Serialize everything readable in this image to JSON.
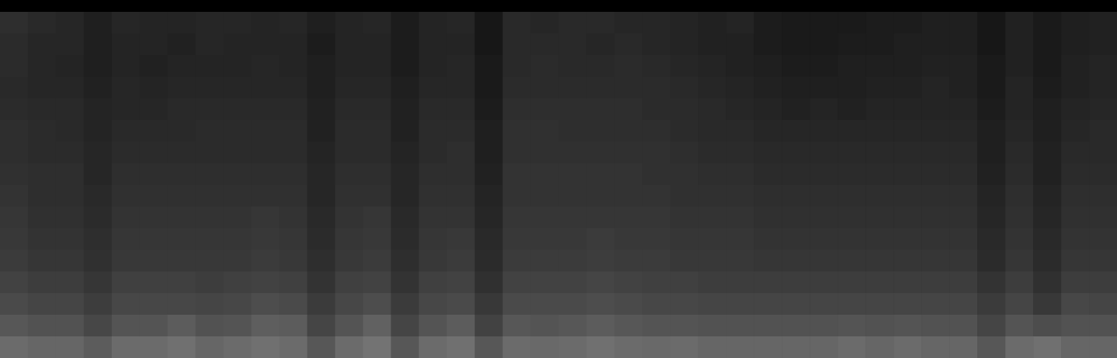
{
  "chart_data": {
    "type": "heatmap",
    "tick_labels": false,
    "color": "#ffffff",
    "zlim": [
      0,
      100
    ],
    "cells": [
      [
        18,
        16,
        15,
        12,
        15,
        14,
        14,
        15,
        15,
        14,
        15,
        12,
        14,
        15,
        11,
        14,
        15,
        9,
        16,
        15,
        16,
        16,
        15,
        15,
        14,
        13,
        14,
        11,
        10,
        10,
        10,
        11,
        11,
        12,
        12,
        9,
        13,
        10,
        12,
        13
      ],
      [
        17,
        15,
        15,
        12,
        14,
        14,
        13,
        15,
        14,
        14,
        14,
        11,
        14,
        14,
        11,
        14,
        14,
        9,
        16,
        16,
        16,
        15,
        16,
        15,
        14,
        13,
        13,
        11,
        10,
        10,
        11,
        11,
        12,
        12,
        12,
        9,
        13,
        10,
        12,
        13
      ],
      [
        17,
        15,
        14,
        12,
        14,
        13,
        14,
        14,
        14,
        15,
        14,
        12,
        14,
        14,
        11,
        14,
        15,
        10,
        16,
        17,
        16,
        16,
        17,
        16,
        15,
        14,
        13,
        12,
        11,
        11,
        12,
        12,
        12,
        13,
        13,
        10,
        13,
        10,
        13,
        14
      ],
      [
        16,
        15,
        15,
        13,
        15,
        14,
        15,
        15,
        15,
        15,
        15,
        12,
        15,
        15,
        12,
        15,
        15,
        10,
        17,
        17,
        17,
        17,
        17,
        17,
        16,
        15,
        14,
        13,
        12,
        12,
        12,
        13,
        13,
        14,
        13,
        10,
        14,
        11,
        13,
        14
      ],
      [
        17,
        16,
        16,
        14,
        15,
        15,
        16,
        16,
        16,
        16,
        16,
        13,
        16,
        16,
        13,
        16,
        16,
        11,
        18,
        18,
        18,
        18,
        18,
        17,
        17,
        16,
        15,
        14,
        13,
        14,
        13,
        14,
        14,
        14,
        14,
        11,
        14,
        12,
        14,
        15
      ],
      [
        18,
        17,
        16,
        14,
        16,
        16,
        16,
        17,
        17,
        17,
        17,
        13,
        17,
        17,
        13,
        17,
        17,
        12,
        19,
        19,
        18,
        18,
        18,
        18,
        17,
        16,
        16,
        15,
        15,
        15,
        15,
        15,
        15,
        15,
        15,
        12,
        15,
        12,
        15,
        16
      ],
      [
        18,
        17,
        17,
        15,
        17,
        17,
        17,
        17,
        17,
        17,
        17,
        14,
        17,
        17,
        14,
        17,
        18,
        12,
        19,
        19,
        19,
        19,
        19,
        19,
        18,
        17,
        17,
        16,
        16,
        16,
        16,
        16,
        16,
        16,
        16,
        12,
        16,
        13,
        16,
        16
      ],
      [
        19,
        18,
        18,
        15,
        18,
        18,
        18,
        18,
        18,
        18,
        18,
        15,
        18,
        18,
        15,
        18,
        18,
        13,
        20,
        20,
        20,
        20,
        20,
        19,
        19,
        18,
        18,
        17,
        17,
        17,
        17,
        17,
        17,
        17,
        17,
        13,
        17,
        13,
        17,
        17
      ],
      [
        20,
        18,
        18,
        16,
        19,
        19,
        19,
        19,
        19,
        19,
        19,
        15,
        19,
        19,
        15,
        19,
        19,
        14,
        20,
        20,
        20,
        20,
        20,
        20,
        19,
        19,
        19,
        18,
        18,
        18,
        18,
        18,
        18,
        18,
        18,
        14,
        18,
        14,
        18,
        18
      ],
      [
        21,
        19,
        19,
        17,
        20,
        20,
        20,
        20,
        20,
        21,
        20,
        16,
        20,
        21,
        16,
        20,
        20,
        15,
        21,
        21,
        21,
        21,
        21,
        21,
        20,
        20,
        20,
        19,
        19,
        19,
        19,
        19,
        19,
        19,
        19,
        15,
        19,
        15,
        19,
        19
      ],
      [
        22,
        20,
        20,
        18,
        21,
        21,
        21,
        21,
        21,
        22,
        21,
        17,
        21,
        22,
        17,
        21,
        22,
        16,
        22,
        22,
        22,
        23,
        22,
        22,
        21,
        21,
        21,
        20,
        20,
        20,
        20,
        20,
        20,
        20,
        20,
        16,
        20,
        16,
        20,
        20
      ],
      [
        23,
        21,
        21,
        19,
        22,
        22,
        22,
        22,
        22,
        23,
        22,
        18,
        22,
        23,
        18,
        22,
        23,
        17,
        23,
        23,
        23,
        24,
        23,
        23,
        22,
        22,
        22,
        21,
        21,
        21,
        21,
        21,
        21,
        21,
        21,
        17,
        21,
        17,
        21,
        21
      ],
      [
        26,
        24,
        24,
        21,
        25,
        25,
        25,
        24,
        25,
        26,
        25,
        20,
        25,
        26,
        20,
        25,
        26,
        19,
        26,
        26,
        26,
        27,
        26,
        25,
        25,
        24,
        24,
        24,
        24,
        24,
        24,
        24,
        24,
        24,
        24,
        20,
        24,
        19,
        24,
        24
      ],
      [
        29,
        27,
        27,
        24,
        28,
        28,
        28,
        27,
        28,
        30,
        29,
        23,
        28,
        30,
        23,
        28,
        29,
        22,
        29,
        29,
        29,
        30,
        29,
        28,
        28,
        27,
        27,
        27,
        27,
        27,
        27,
        27,
        27,
        27,
        27,
        23,
        27,
        22,
        28,
        27
      ],
      [
        34,
        32,
        32,
        28,
        33,
        33,
        36,
        32,
        33,
        37,
        36,
        27,
        33,
        38,
        27,
        33,
        36,
        26,
        34,
        33,
        34,
        36,
        34,
        33,
        33,
        32,
        32,
        32,
        32,
        32,
        33,
        32,
        33,
        32,
        32,
        27,
        33,
        30,
        32,
        32
      ],
      [
        42,
        40,
        40,
        36,
        42,
        42,
        44,
        40,
        42,
        44,
        42,
        34,
        42,
        45,
        34,
        42,
        44,
        34,
        42,
        41,
        42,
        44,
        42,
        41,
        42,
        40,
        40,
        40,
        40,
        40,
        42,
        40,
        42,
        40,
        40,
        34,
        42,
        44,
        40,
        40
      ]
    ]
  }
}
